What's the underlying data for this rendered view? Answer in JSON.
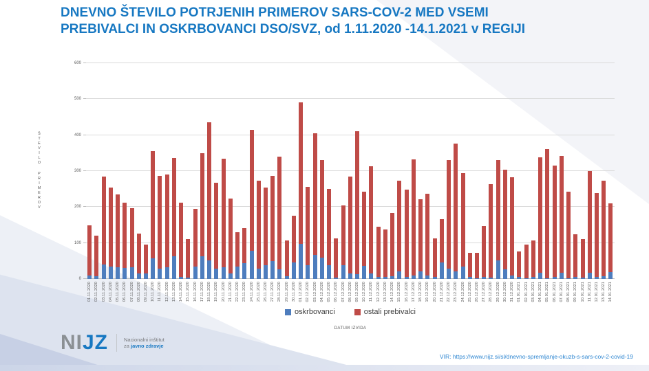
{
  "title": {
    "line1": "DNEVNO ŠTEVILO POTRJENIH PRIMEROV SARS-COV-2 MED VSEMI",
    "line2": "PREBIVALCI IN OSKRBOVANCI DSO/SVZ, od 1.11.2020 -14.1.2021 v REGIJI"
  },
  "chart_data": {
    "type": "stacked-bar",
    "xlabel": "DATUM IZVIDA",
    "ylabel": "ŠTEVILO PRIMEROV",
    "ylim": [
      0,
      600
    ],
    "yticks": [
      0,
      100,
      200,
      300,
      400,
      500,
      600
    ],
    "grid": true,
    "legend_position": "bottom",
    "categories": [
      "01.11.2020",
      "02.11.2020",
      "03.11.2020",
      "04.11.2020",
      "05.11.2020",
      "06.11.2020",
      "07.11.2020",
      "08.11.2020",
      "09.11.2020",
      "10.11.2020",
      "11.11.2020",
      "12.11.2020",
      "13.11.2020",
      "14.11.2020",
      "15.11.2020",
      "16.11.2020",
      "17.11.2020",
      "18.11.2020",
      "19.11.2020",
      "20.11.2020",
      "21.11.2020",
      "22.11.2020",
      "23.11.2020",
      "24.11.2020",
      "25.11.2020",
      "26.11.2020",
      "27.11.2020",
      "28.11.2020",
      "29.11.2020",
      "30.11.2020",
      "01.12.2020",
      "02.12.2020",
      "03.12.2020",
      "04.12.2020",
      "05.12.2020",
      "06.12.2020",
      "07.12.2020",
      "08.12.2020",
      "09.12.2020",
      "10.12.2020",
      "11.12.2020",
      "12.12.2020",
      "13.12.2020",
      "14.12.2020",
      "15.12.2020",
      "16.12.2020",
      "17.12.2020",
      "18.12.2020",
      "19.12.2020",
      "20.12.2020",
      "21.12.2020",
      "22.12.2020",
      "23.12.2020",
      "24.12.2020",
      "25.12.2020",
      "26.12.2020",
      "27.12.2020",
      "28.12.2020",
      "29.12.2020",
      "30.12.2020",
      "31.12.2020",
      "01.01.2021",
      "02.01.2021",
      "03.01.2021",
      "04.01.2021",
      "05.01.2021",
      "06.01.2021",
      "07.01.2021",
      "08.01.2021",
      "09.01.2021",
      "10.01.2021",
      "11.01.2021",
      "12.01.2021",
      "13.01.2021",
      "14.01.2021"
    ],
    "series": [
      {
        "name": "oskrbovanci",
        "color": "#4e7dbd",
        "values": [
          10,
          8,
          40,
          35,
          32,
          30,
          32,
          16,
          16,
          57,
          28,
          32,
          63,
          5,
          3,
          34,
          63,
          52,
          28,
          32,
          15,
          34,
          44,
          78,
          28,
          39,
          49,
          26,
          8,
          45,
          97,
          38,
          67,
          60,
          38,
          3,
          38,
          15,
          13,
          36,
          15,
          5,
          5,
          8,
          21,
          6,
          10,
          21,
          10,
          5,
          45,
          28,
          21,
          34,
          6,
          2,
          5,
          4,
          52,
          26,
          10,
          6,
          2,
          5,
          17,
          2,
          6,
          17,
          2,
          5,
          4,
          17,
          6,
          8,
          19
        ]
      },
      {
        "name": "ostali prebivalci",
        "color": "#bf4b47",
        "values": [
          140,
          112,
          245,
          220,
          203,
          182,
          164,
          111,
          79,
          298,
          259,
          258,
          274,
          207,
          107,
          161,
          287,
          384,
          239,
          303,
          209,
          96,
          97,
          337,
          246,
          215,
          238,
          314,
          99,
          130,
          395,
          218,
          339,
          270,
          213,
          110,
          166,
          270,
          398,
          207,
          298,
          141,
          133,
          175,
          253,
          242,
          322,
          201,
          227,
          108,
          122,
          303,
          356,
          261,
          67,
          71,
          143,
          260,
          278,
          278,
          272,
          70,
          94,
          102,
          321,
          359,
          310,
          325,
          241,
          120,
          106,
          283,
          232,
          266,
          192
        ]
      }
    ]
  },
  "footer": {
    "logo_gray": "NI",
    "logo_blue": "JZ",
    "org_line1": "Nacionalni inštitut",
    "org_line2_prefix": "za ",
    "org_line2_bold": "javno zdravje",
    "source": "VIR: https://www.nijz.si/sl/dnevno-spremljanje-okuzb-s-sars-cov-2-covid-19"
  },
  "colors": {
    "title": "#1778c2",
    "gridline": "#d9d9d9",
    "oskrbovanci": "#4e7dbd",
    "ostali_prebivalci": "#bf4b47"
  }
}
